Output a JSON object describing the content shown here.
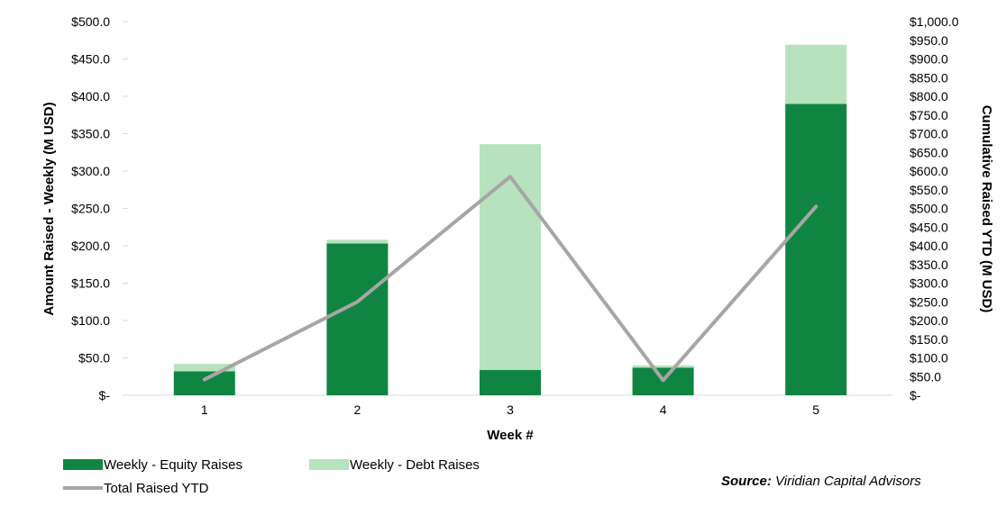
{
  "chart_data": {
    "type": "bar",
    "stacked": true,
    "categories": [
      "1",
      "2",
      "3",
      "4",
      "5"
    ],
    "series": [
      {
        "name": "Weekly - Equity Raises",
        "type": "bar",
        "axis": "left",
        "color": "#108542",
        "values": [
          32,
          203,
          34,
          37,
          390
        ]
      },
      {
        "name": "Weekly - Debt Raises",
        "type": "bar",
        "axis": "left",
        "color": "#b6e3bc",
        "values": [
          10,
          5,
          302,
          3,
          79
        ]
      },
      {
        "name": "Total Raised YTD",
        "type": "line",
        "axis": "right",
        "color": "#a6a6a6",
        "values": [
          42,
          250,
          585,
          40,
          505
        ]
      }
    ],
    "xlabel": "Week #",
    "ylabel": "Amount Raised - Weekly (M USD)",
    "y2label": "Cumulative Raised YTD (M USD)",
    "ylim": [
      0,
      500
    ],
    "y2lim": [
      0,
      1000
    ],
    "yticks": [
      "$-",
      "$50.0",
      "$100.0",
      "$150.0",
      "$200.0",
      "$250.0",
      "$300.0",
      "$350.0",
      "$400.0",
      "$450.0",
      "$500.0"
    ],
    "y2ticks": [
      "$-",
      "$50.0",
      "$100.0",
      "$150.0",
      "$200.0",
      "$250.0",
      "$300.0",
      "$350.0",
      "$400.0",
      "$450.0",
      "$500.0",
      "$550.0",
      "$600.0",
      "$650.0",
      "$700.0",
      "$750.0",
      "$800.0",
      "$850.0",
      "$900.0",
      "$950.0",
      "$1,000.0"
    ],
    "grid": false,
    "legend": "bottom-left"
  },
  "source": {
    "label": "Source:",
    "text": "Viridian Capital Advisors"
  }
}
